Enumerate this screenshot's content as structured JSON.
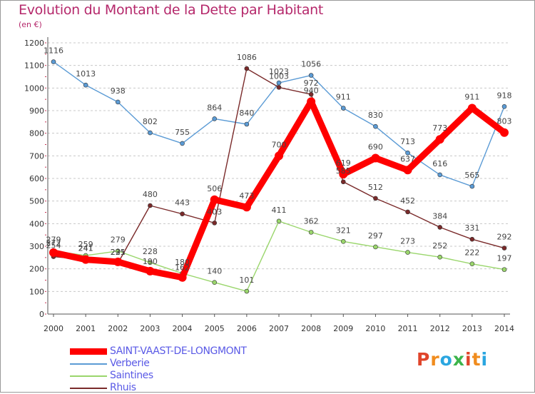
{
  "title": "Evolution du Montant de la Dette par Habitant",
  "unit_label": "(en €)",
  "logo": {
    "text": "Proxiti",
    "colors": [
      "#e0452b",
      "#f08c1e",
      "#2aa6e0",
      "#3cb44b",
      "#e0452b",
      "#f08c1e",
      "#2aa6e0"
    ]
  },
  "chart_data": {
    "type": "line",
    "title": "Evolution du Montant de la Dette par Habitant",
    "subtitle": "(en €)",
    "xlabel": "",
    "ylabel": "",
    "x": [
      "2000",
      "2001",
      "2002",
      "2003",
      "2004",
      "2005",
      "2006",
      "2007",
      "2008",
      "2009",
      "2010",
      "2011",
      "2012",
      "2013",
      "2014"
    ],
    "ylim": [
      0,
      1200
    ],
    "yticks": [
      "0",
      "100",
      "200",
      "300",
      "400",
      "500",
      "600",
      "700",
      "800",
      "900",
      "1000",
      "1100",
      "1200"
    ],
    "grid": "horizontal-dashed",
    "legend": "bottom-left",
    "series": [
      {
        "name": "SAINT-VAAST-DE-LONGMONT",
        "color": "#ff0000",
        "values": [
          272,
          241,
          231,
          190,
          162,
          506,
          473,
          700,
          940,
          619,
          690,
          637,
          773,
          911,
          803
        ],
        "labels": [
          "272",
          "241",
          "231",
          "190",
          "162",
          "506",
          "473",
          "700",
          "940",
          "619",
          "690",
          "637",
          "773",
          "911",
          "803"
        ]
      },
      {
        "name": "Verberie",
        "color": "#5b9bd5",
        "values": [
          1116,
          1013,
          938,
          802,
          755,
          864,
          840,
          1023,
          1056,
          911,
          830,
          713,
          616,
          565,
          918
        ],
        "labels": [
          "1116",
          "1013",
          "938",
          "802",
          "755",
          "864",
          "840",
          "1023",
          "1056",
          "911",
          "830",
          "713",
          "616",
          "565",
          "918"
        ]
      },
      {
        "name": "Saintines",
        "color": "#9ad66c",
        "values": [
          279,
          259,
          279,
          228,
          180,
          140,
          101,
          411,
          362,
          321,
          297,
          273,
          252,
          222,
          197
        ],
        "labels": [
          "279",
          "259",
          "279",
          "228",
          "180",
          "140",
          "101",
          "411",
          "362",
          "321",
          "297",
          "273",
          "252",
          "222",
          "197"
        ]
      },
      {
        "name": "Rhuis",
        "color": "#7a2a2a",
        "values": [
          254,
          241,
          225,
          480,
          443,
          403,
          1086,
          1003,
          972,
          585,
          512,
          452,
          384,
          331,
          292
        ],
        "labels": [
          "254",
          "241",
          "225",
          "480",
          "443",
          "403",
          "1086",
          "1003",
          "972",
          "585",
          "512",
          "452",
          "384",
          "331",
          "292"
        ]
      }
    ]
  }
}
